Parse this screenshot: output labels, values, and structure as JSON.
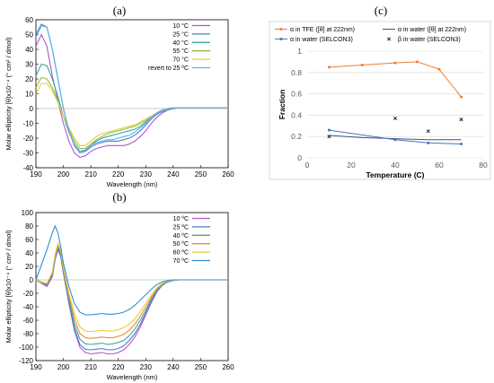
{
  "panel_labels": {
    "a": "(a)",
    "b": "(b)",
    "c": "(c)"
  },
  "chart_data": [
    {
      "panel": "(a)",
      "type": "line",
      "xlabel": "Wavelength (nm)",
      "ylabel": "Molar ellipticity [θ]x10⁻⁴ (° cm² / dmol)",
      "xlim": [
        190,
        260
      ],
      "ylim": [
        -40,
        60
      ],
      "xticks": [
        190,
        200,
        210,
        220,
        230,
        240,
        250,
        260
      ],
      "yticks": [
        -40,
        -30,
        -20,
        -10,
        0,
        10,
        20,
        30,
        40,
        50,
        60
      ],
      "legend_position": "top-right",
      "grid": false,
      "series": [
        {
          "name": "10 °C",
          "color": "#b455c8",
          "x": [
            190,
            192,
            194,
            196,
            198,
            200,
            202,
            204,
            206,
            208,
            210,
            212,
            214,
            216,
            218,
            220,
            222,
            224,
            226,
            228,
            230,
            232,
            234,
            236,
            238,
            240,
            242,
            244,
            246,
            250,
            255,
            260
          ],
          "y": [
            42,
            50,
            42,
            22,
            5,
            -10,
            -22,
            -30,
            -33,
            -32,
            -29,
            -27,
            -26,
            -25,
            -25,
            -25,
            -25,
            -24,
            -22,
            -19,
            -15,
            -10,
            -6,
            -3,
            -1,
            0,
            0.5,
            0.5,
            0.5,
            0.5,
            0.5,
            0.5
          ]
        },
        {
          "name": "25 °C",
          "color": "#4a7dd0",
          "x": [
            190,
            192,
            194,
            196,
            198,
            200,
            202,
            204,
            206,
            208,
            210,
            212,
            214,
            216,
            218,
            220,
            222,
            224,
            226,
            228,
            230,
            232,
            234,
            236,
            238,
            240,
            242,
            244,
            246,
            250,
            255,
            260
          ],
          "y": [
            50,
            57,
            55,
            40,
            20,
            0,
            -15,
            -25,
            -30,
            -29,
            -26,
            -24,
            -23,
            -22,
            -22,
            -22,
            -21,
            -20,
            -18,
            -15,
            -11,
            -7,
            -4,
            -2,
            -1,
            0,
            0.5,
            0.5,
            0.5,
            0.5,
            0.5,
            0.5
          ]
        },
        {
          "name": "40 °C",
          "color": "#3aa7a0",
          "x": [
            190,
            192,
            194,
            196,
            198,
            200,
            202,
            204,
            206,
            208,
            210,
            212,
            214,
            216,
            218,
            220,
            222,
            224,
            226,
            228,
            230,
            232,
            234,
            236,
            238,
            240,
            242,
            244,
            246,
            250,
            255,
            260
          ],
          "y": [
            22,
            30,
            29,
            20,
            8,
            -5,
            -16,
            -24,
            -29,
            -28,
            -25,
            -22,
            -20,
            -19,
            -18,
            -17,
            -16,
            -15,
            -14,
            -12,
            -9,
            -6,
            -3,
            -1,
            0,
            0.5,
            0.5,
            0.5,
            0.5,
            0.5,
            0.5,
            0.5
          ]
        },
        {
          "name": "55 °C",
          "color": "#8fbf3f",
          "x": [
            190,
            192,
            194,
            196,
            198,
            200,
            202,
            204,
            206,
            208,
            210,
            212,
            214,
            216,
            218,
            220,
            222,
            224,
            226,
            228,
            230,
            232,
            234,
            236,
            238,
            240,
            242,
            244,
            246,
            250,
            255,
            260
          ],
          "y": [
            14,
            21,
            20,
            14,
            5,
            -5,
            -14,
            -22,
            -27,
            -27,
            -24,
            -21,
            -19,
            -17,
            -16,
            -15,
            -14,
            -13,
            -12,
            -10,
            -8,
            -5,
            -3,
            -1,
            0,
            0.5,
            0.5,
            0.5,
            0.5,
            0.5,
            0.5,
            0.5
          ]
        },
        {
          "name": "70 °C",
          "color": "#e8c93a",
          "x": [
            190,
            192,
            194,
            196,
            198,
            200,
            202,
            204,
            206,
            208,
            210,
            212,
            214,
            216,
            218,
            220,
            222,
            224,
            226,
            228,
            230,
            232,
            234,
            236,
            238,
            240,
            242,
            244,
            246,
            250,
            255,
            260
          ],
          "y": [
            10,
            17,
            17,
            12,
            4,
            -5,
            -13,
            -20,
            -25,
            -25,
            -22,
            -19,
            -17,
            -16,
            -15,
            -14,
            -13,
            -12,
            -11,
            -9,
            -7,
            -5,
            -3,
            -1,
            0,
            0.5,
            0.5,
            0.5,
            0.5,
            0.5,
            0.5,
            0.5
          ]
        },
        {
          "name": "revert to 25 ºC",
          "color": "#5db3e8",
          "x": [
            190,
            192,
            194,
            196,
            198,
            200,
            202,
            204,
            206,
            208,
            210,
            212,
            214,
            216,
            218,
            220,
            222,
            224,
            226,
            228,
            230,
            232,
            234,
            236,
            238,
            240,
            242,
            244,
            246,
            250,
            255,
            260
          ],
          "y": [
            48,
            56,
            55,
            40,
            20,
            0,
            -15,
            -25,
            -30,
            -28,
            -25,
            -23,
            -22,
            -21,
            -21,
            -20,
            -19,
            -18,
            -16,
            -13,
            -10,
            -6,
            -3,
            -1,
            0,
            0.5,
            0.5,
            0.5,
            0.5,
            0.5,
            0.5,
            0.5
          ]
        }
      ]
    },
    {
      "panel": "(b)",
      "type": "line",
      "xlabel": "Wavelength (nm)",
      "ylabel": "Molar ellipticity [θ]x10⁻⁴ (° cm² / dmol)",
      "xlim": [
        190,
        260
      ],
      "ylim": [
        -120,
        100
      ],
      "xticks": [
        190,
        200,
        210,
        220,
        230,
        240,
        250,
        260
      ],
      "yticks": [
        -120,
        -100,
        -80,
        -60,
        -40,
        -20,
        0,
        20,
        40,
        60,
        80,
        100
      ],
      "legend_position": "top-right",
      "grid": false,
      "series": [
        {
          "name": "10 ºC",
          "color": "#b455c8",
          "x": [
            190,
            192,
            194,
            196,
            197,
            198,
            199,
            200,
            202,
            204,
            206,
            208,
            210,
            212,
            214,
            216,
            218,
            220,
            222,
            224,
            226,
            228,
            230,
            232,
            234,
            236,
            238,
            240,
            242,
            244,
            246,
            250,
            255,
            260
          ],
          "y": [
            0,
            -5,
            -10,
            5,
            30,
            45,
            35,
            10,
            -35,
            -75,
            -100,
            -108,
            -110,
            -109,
            -108,
            -110,
            -110,
            -108,
            -104,
            -96,
            -85,
            -70,
            -52,
            -34,
            -18,
            -8,
            -3,
            -1,
            0,
            0,
            0,
            0,
            0,
            0
          ]
        },
        {
          "name": "25 ºC",
          "color": "#4a7dd0",
          "x": [
            190,
            192,
            194,
            196,
            197,
            198,
            199,
            200,
            202,
            204,
            206,
            208,
            210,
            212,
            214,
            216,
            218,
            220,
            222,
            224,
            226,
            228,
            230,
            232,
            234,
            236,
            238,
            240,
            242,
            244,
            246,
            250,
            255,
            260
          ],
          "y": [
            0,
            -4,
            -8,
            6,
            32,
            47,
            37,
            12,
            -32,
            -72,
            -96,
            -103,
            -104,
            -103,
            -102,
            -104,
            -104,
            -102,
            -98,
            -90,
            -80,
            -66,
            -49,
            -32,
            -17,
            -8,
            -3,
            -1,
            0,
            0,
            0,
            0,
            0,
            0
          ]
        },
        {
          "name": "40 ºC",
          "color": "#3aa7a0",
          "x": [
            190,
            192,
            194,
            196,
            197,
            198,
            199,
            200,
            202,
            204,
            206,
            208,
            210,
            212,
            214,
            216,
            218,
            220,
            222,
            224,
            226,
            228,
            230,
            232,
            234,
            236,
            238,
            240,
            242,
            244,
            246,
            250,
            255,
            260
          ],
          "y": [
            0,
            -4,
            -7,
            8,
            34,
            49,
            39,
            14,
            -28,
            -66,
            -88,
            -95,
            -96,
            -95,
            -94,
            -96,
            -95,
            -93,
            -90,
            -83,
            -73,
            -60,
            -45,
            -29,
            -15,
            -7,
            -3,
            -1,
            0,
            0,
            0,
            0,
            0,
            0
          ]
        },
        {
          "name": "50 ºC",
          "color": "#f08a2a",
          "x": [
            190,
            192,
            194,
            196,
            197,
            198,
            199,
            200,
            202,
            204,
            206,
            208,
            210,
            212,
            214,
            216,
            218,
            220,
            222,
            224,
            226,
            228,
            230,
            232,
            234,
            236,
            238,
            240,
            242,
            244,
            246,
            250,
            255,
            260
          ],
          "y": [
            0,
            -3,
            -6,
            10,
            36,
            52,
            42,
            16,
            -24,
            -58,
            -80,
            -86,
            -87,
            -86,
            -85,
            -86,
            -86,
            -84,
            -81,
            -75,
            -66,
            -54,
            -40,
            -26,
            -14,
            -6,
            -2,
            -1,
            0,
            0,
            0,
            0,
            0,
            0
          ]
        },
        {
          "name": "60 ºC",
          "color": "#e8c93a",
          "x": [
            190,
            192,
            194,
            196,
            197,
            198,
            199,
            200,
            202,
            204,
            206,
            208,
            210,
            212,
            214,
            216,
            218,
            220,
            222,
            224,
            226,
            228,
            230,
            232,
            234,
            236,
            238,
            240,
            242,
            244,
            246,
            250,
            255,
            260
          ],
          "y": [
            0,
            -3,
            -5,
            12,
            38,
            54,
            45,
            18,
            -20,
            -50,
            -70,
            -76,
            -77,
            -76,
            -75,
            -76,
            -76,
            -74,
            -71,
            -66,
            -58,
            -47,
            -35,
            -23,
            -12,
            -5,
            -2,
            -1,
            0,
            0,
            0,
            0,
            0,
            0
          ]
        },
        {
          "name": "70 ºC",
          "color": "#2f8fd6",
          "x": [
            190,
            192,
            194,
            196,
            197,
            198,
            199,
            200,
            202,
            204,
            206,
            208,
            210,
            212,
            214,
            216,
            218,
            220,
            222,
            224,
            226,
            228,
            230,
            232,
            234,
            236,
            238,
            240,
            242,
            244,
            246,
            250,
            255,
            260
          ],
          "y": [
            0,
            22,
            45,
            70,
            80,
            70,
            50,
            25,
            -10,
            -35,
            -48,
            -52,
            -52,
            -51,
            -50,
            -51,
            -51,
            -50,
            -48,
            -44,
            -38,
            -30,
            -22,
            -14,
            -7,
            -3,
            -1,
            0,
            0,
            0,
            0,
            0,
            0,
            0
          ]
        }
      ]
    },
    {
      "panel": "(c)",
      "type": "line",
      "xlabel": "Temperature (C)",
      "ylabel": "Fraction",
      "xlim": [
        0,
        80
      ],
      "ylim": [
        0,
        1
      ],
      "xticks": [
        0,
        20,
        40,
        60,
        80
      ],
      "yticks": [
        0,
        0.2,
        0.4,
        0.6,
        0.8,
        1
      ],
      "legend_position": "top",
      "grid": true,
      "series": [
        {
          "name": "α in TFE ([θ] at 222nm)",
          "color": "#ed7d31",
          "style": "line-marker",
          "x": [
            10,
            25,
            40,
            50,
            60,
            70
          ],
          "y": [
            0.85,
            0.87,
            0.89,
            0.9,
            0.83,
            0.57
          ]
        },
        {
          "name": "α in water ([θ] at 222nm)",
          "color": "#44546a",
          "style": "line",
          "x": [
            10,
            25,
            40,
            55,
            70
          ],
          "y": [
            0.21,
            0.19,
            0.18,
            0.17,
            0.17
          ]
        },
        {
          "name": "α in water (SELCON3)",
          "color": "#4472c4",
          "style": "line-marker",
          "x": [
            10,
            40,
            55,
            70
          ],
          "y": [
            0.26,
            0.17,
            0.14,
            0.13
          ]
        },
        {
          "name": "β in water (SELCON3)",
          "color": "#222222",
          "style": "marker-x",
          "x": [
            10,
            40,
            55,
            70
          ],
          "y": [
            0.2,
            0.37,
            0.25,
            0.36
          ]
        }
      ]
    }
  ]
}
